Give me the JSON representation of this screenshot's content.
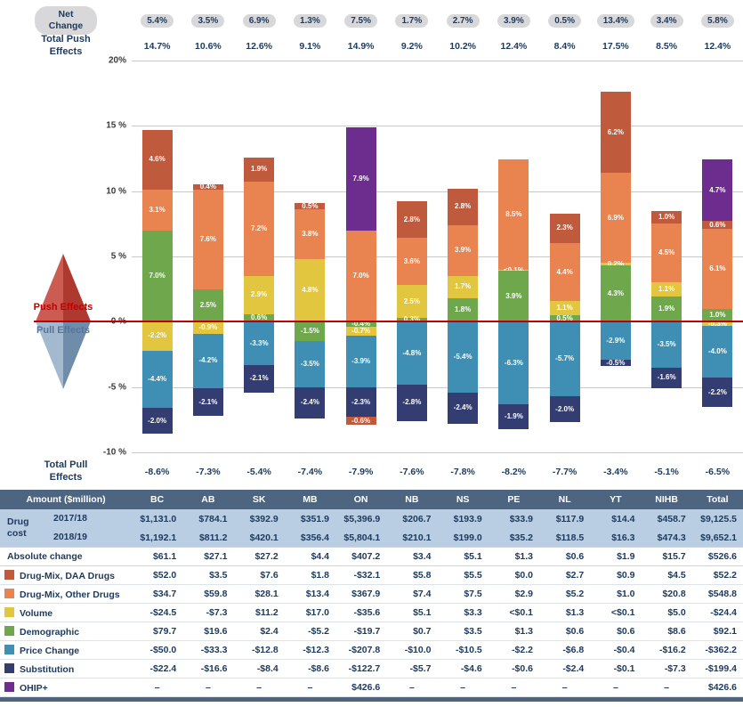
{
  "top": {
    "net_change_label": "Net Change",
    "net_change": [
      "5.4%",
      "3.5%",
      "6.9%",
      "1.3%",
      "7.5%",
      "1.7%",
      "2.7%",
      "3.9%",
      "0.5%",
      "13.4%",
      "3.4%",
      "5.8%"
    ],
    "total_push_label": "Total Push Effects",
    "total_push": [
      "14.7%",
      "10.6%",
      "12.6%",
      "9.1%",
      "14.9%",
      "9.2%",
      "10.2%",
      "12.4%",
      "8.4%",
      "17.5%",
      "8.5%",
      "12.4%"
    ],
    "total_pull_label": "Total Pull Effects",
    "total_pull": [
      "-8.6%",
      "-7.3%",
      "-5.4%",
      "-7.4%",
      "-7.9%",
      "-7.6%",
      "-7.8%",
      "-8.2%",
      "-7.7%",
      "-3.4%",
      "-5.1%",
      "-6.5%"
    ]
  },
  "decoration": {
    "push_text": "Push Effects",
    "pull_text": "Pull Effects",
    "line_color": "#C00000"
  },
  "chart_data": {
    "type": "bar",
    "stacked": true,
    "categories": [
      "BC",
      "AB",
      "SK",
      "MB",
      "ON",
      "NB",
      "NS",
      "PE",
      "NL",
      "YT",
      "NIHB",
      "Total"
    ],
    "ylim": [
      -10,
      20
    ],
    "grid": true,
    "yticks": [
      {
        "v": 20,
        "label": "20%"
      },
      {
        "v": 15,
        "label": "15 %"
      },
      {
        "v": 10,
        "label": "10 %"
      },
      {
        "v": 5,
        "label": "5 %"
      },
      {
        "v": 0,
        "label": "0 %"
      },
      {
        "v": -5,
        "label": "-5 %"
      },
      {
        "v": -10,
        "label": "-10 %"
      }
    ],
    "series_names": {
      "daa": "Drug-Mix, DAA Drugs",
      "other": "Drug-Mix, Other Drugs",
      "vol": "Volume",
      "demo": "Demographic",
      "price": "Price Change",
      "sub": "Substitution",
      "ohip": "OHIP+"
    },
    "series_colors": {
      "daa": "#C05A3C",
      "other": "#E9834F",
      "vol": "#E2C63F",
      "demo": "#6FA84C",
      "price": "#3E8FB3",
      "sub": "#333D72",
      "ohip": "#6D2D8F"
    },
    "bars": [
      {
        "category": "BC",
        "segments": [
          {
            "s": "daa",
            "v": 4.6,
            "label": "4.6%"
          },
          {
            "s": "other",
            "v": 3.1,
            "label": "3.1%"
          },
          {
            "s": "demo",
            "v": 7.0,
            "label": "7.0%"
          },
          {
            "s": "vol",
            "v": -2.2,
            "label": "-2.2%"
          },
          {
            "s": "price",
            "v": -4.4,
            "label": "-4.4%"
          },
          {
            "s": "sub",
            "v": -2.0,
            "label": "-2.0%"
          }
        ]
      },
      {
        "category": "AB",
        "segments": [
          {
            "s": "daa",
            "v": 0.4,
            "label": "0.4%"
          },
          {
            "s": "other",
            "v": 7.6,
            "label": "7.6%"
          },
          {
            "s": "demo",
            "v": 2.5,
            "label": "2.5%"
          },
          {
            "s": "vol",
            "v": -0.9,
            "label": "-0.9%"
          },
          {
            "s": "price",
            "v": -4.2,
            "label": "-4.2%"
          },
          {
            "s": "sub",
            "v": -2.1,
            "label": "-2.1%"
          }
        ]
      },
      {
        "category": "SK",
        "segments": [
          {
            "s": "daa",
            "v": 1.9,
            "label": "1.9%"
          },
          {
            "s": "other",
            "v": 7.2,
            "label": "7.2%"
          },
          {
            "s": "vol",
            "v": 2.9,
            "label": "2.9%"
          },
          {
            "s": "demo",
            "v": 0.6,
            "label": "0.6%"
          },
          {
            "s": "price",
            "v": -3.3,
            "label": "-3.3%"
          },
          {
            "s": "sub",
            "v": -2.1,
            "label": "-2.1%"
          }
        ]
      },
      {
        "category": "MB",
        "segments": [
          {
            "s": "daa",
            "v": 0.5,
            "label": "0.5%"
          },
          {
            "s": "other",
            "v": 3.8,
            "label": "3.8%"
          },
          {
            "s": "vol",
            "v": 4.8,
            "label": "4.8%"
          },
          {
            "s": "demo",
            "v": -1.5,
            "label": "-1.5%"
          },
          {
            "s": "price",
            "v": -3.5,
            "label": "-3.5%"
          },
          {
            "s": "sub",
            "v": -2.4,
            "label": "-2.4%"
          }
        ]
      },
      {
        "category": "ON",
        "segments": [
          {
            "s": "ohip",
            "v": 7.9,
            "label": "7.9%"
          },
          {
            "s": "other",
            "v": 7.0,
            "label": "7.0%"
          },
          {
            "s": "demo",
            "v": -0.4,
            "label": "-0.4%"
          },
          {
            "s": "vol",
            "v": -0.7,
            "label": "-0.7%"
          },
          {
            "s": "price",
            "v": -3.9,
            "label": "-3.9%"
          },
          {
            "s": "sub",
            "v": -2.3,
            "label": "-2.3%"
          },
          {
            "s": "daa",
            "v": -0.6,
            "label": "-0.6%"
          }
        ]
      },
      {
        "category": "NB",
        "segments": [
          {
            "s": "daa",
            "v": 2.8,
            "label": "2.8%"
          },
          {
            "s": "other",
            "v": 3.6,
            "label": "3.6%"
          },
          {
            "s": "vol",
            "v": 2.5,
            "label": "2.5%"
          },
          {
            "s": "demo",
            "v": 0.3,
            "label": "0.3%"
          },
          {
            "s": "price",
            "v": -4.8,
            "label": "-4.8%"
          },
          {
            "s": "sub",
            "v": -2.8,
            "label": "-2.8%"
          }
        ]
      },
      {
        "category": "NS",
        "segments": [
          {
            "s": "daa",
            "v": 2.8,
            "label": "2.8%"
          },
          {
            "s": "other",
            "v": 3.9,
            "label": "3.9%"
          },
          {
            "s": "vol",
            "v": 1.7,
            "label": "1.7%"
          },
          {
            "s": "demo",
            "v": 1.8,
            "label": "1.8%"
          },
          {
            "s": "price",
            "v": -5.4,
            "label": "-5.4%"
          },
          {
            "s": "sub",
            "v": -2.4,
            "label": "-2.4%"
          }
        ]
      },
      {
        "category": "PE",
        "segments": [
          {
            "s": "other",
            "v": 8.5,
            "label": "8.5%"
          },
          {
            "s": "vol",
            "v": 0.05,
            "label": "<0.1%"
          },
          {
            "s": "demo",
            "v": 3.9,
            "label": "3.9%"
          },
          {
            "s": "price",
            "v": -6.3,
            "label": "-6.3%"
          },
          {
            "s": "sub",
            "v": -1.9,
            "label": "-1.9%"
          }
        ]
      },
      {
        "category": "NL",
        "segments": [
          {
            "s": "daa",
            "v": 2.3,
            "label": "2.3%"
          },
          {
            "s": "other",
            "v": 4.4,
            "label": "4.4%"
          },
          {
            "s": "vol",
            "v": 1.1,
            "label": "1.1%"
          },
          {
            "s": "demo",
            "v": 0.5,
            "label": "0.5%"
          },
          {
            "s": "price",
            "v": -5.7,
            "label": "-5.7%"
          },
          {
            "s": "sub",
            "v": -2.0,
            "label": "-2.0%"
          }
        ]
      },
      {
        "category": "YT",
        "segments": [
          {
            "s": "daa",
            "v": 6.2,
            "label": "6.2%"
          },
          {
            "s": "other",
            "v": 6.9,
            "label": "6.9%"
          },
          {
            "s": "vol",
            "v": 0.2,
            "label": "0.2%"
          },
          {
            "s": "demo",
            "v": 4.3,
            "label": "4.3%"
          },
          {
            "s": "price",
            "v": -2.9,
            "label": "-2.9%"
          },
          {
            "s": "sub",
            "v": -0.5,
            "label": "-0.5%"
          }
        ]
      },
      {
        "category": "NIHB",
        "segments": [
          {
            "s": "daa",
            "v": 1.0,
            "label": "1.0%"
          },
          {
            "s": "other",
            "v": 4.5,
            "label": "4.5%"
          },
          {
            "s": "vol",
            "v": 1.1,
            "label": "1.1%"
          },
          {
            "s": "demo",
            "v": 1.9,
            "label": "1.9%"
          },
          {
            "s": "price",
            "v": -3.5,
            "label": "-3.5%"
          },
          {
            "s": "sub",
            "v": -1.6,
            "label": "-1.6%"
          }
        ]
      },
      {
        "category": "Total",
        "segments": [
          {
            "s": "ohip",
            "v": 4.7,
            "label": "4.7%"
          },
          {
            "s": "daa",
            "v": 0.6,
            "label": "0.6%"
          },
          {
            "s": "other",
            "v": 6.1,
            "label": "6.1%"
          },
          {
            "s": "demo",
            "v": 1.0,
            "label": "1.0%"
          },
          {
            "s": "vol",
            "v": -0.3,
            "label": "-0.3%"
          },
          {
            "s": "price",
            "v": -4.0,
            "label": "-4.0%"
          },
          {
            "s": "sub",
            "v": -2.2,
            "label": "-2.2%"
          }
        ]
      }
    ]
  },
  "table": {
    "header": [
      "Amount ($million)",
      "BC",
      "AB",
      "SK",
      "MB",
      "ON",
      "NB",
      "NS",
      "PE",
      "NL",
      "YT",
      "NIHB",
      "Total"
    ],
    "drug_cost_label": "Drug cost",
    "cost_rows": [
      {
        "year": "2017/18",
        "values": [
          "$1,131.0",
          "$784.1",
          "$392.9",
          "$351.9",
          "$5,396.9",
          "$206.7",
          "$193.9",
          "$33.9",
          "$117.9",
          "$14.4",
          "$458.7",
          "$9,125.5"
        ]
      },
      {
        "year": "2018/19",
        "values": [
          "$1,192.1",
          "$811.2",
          "$420.1",
          "$356.4",
          "$5,804.1",
          "$210.1",
          "$199.0",
          "$35.2",
          "$118.5",
          "$16.3",
          "$474.3",
          "$9,652.1"
        ]
      }
    ],
    "abs_change": {
      "label": "Absolute change",
      "values": [
        "$61.1",
        "$27.1",
        "$27.2",
        "$4.4",
        "$407.2",
        "$3.4",
        "$5.1",
        "$1.3",
        "$0.6",
        "$1.9",
        "$15.7",
        "$526.6"
      ]
    },
    "legend_rows": [
      {
        "key": "daa",
        "label": "Drug-Mix, DAA Drugs",
        "values": [
          "$52.0",
          "$3.5",
          "$7.6",
          "$1.8",
          "-$32.1",
          "$5.8",
          "$5.5",
          "$0.0",
          "$2.7",
          "$0.9",
          "$4.5",
          "$52.2"
        ]
      },
      {
        "key": "other",
        "label": "Drug-Mix, Other Drugs",
        "values": [
          "$34.7",
          "$59.8",
          "$28.1",
          "$13.4",
          "$367.9",
          "$7.4",
          "$7.5",
          "$2.9",
          "$5.2",
          "$1.0",
          "$20.8",
          "$548.8"
        ]
      },
      {
        "key": "vol",
        "label": "Volume",
        "values": [
          "-$24.5",
          "-$7.3",
          "$11.2",
          "$17.0",
          "-$35.6",
          "$5.1",
          "$3.3",
          "<$0.1",
          "$1.3",
          "<$0.1",
          "$5.0",
          "-$24.4"
        ]
      },
      {
        "key": "demo",
        "label": "Demographic",
        "values": [
          "$79.7",
          "$19.6",
          "$2.4",
          "-$5.2",
          "-$19.7",
          "$0.7",
          "$3.5",
          "$1.3",
          "$0.6",
          "$0.6",
          "$8.6",
          "$92.1"
        ]
      },
      {
        "key": "price",
        "label": "Price Change",
        "values": [
          "-$50.0",
          "-$33.3",
          "-$12.8",
          "-$12.3",
          "-$207.8",
          "-$10.0",
          "-$10.5",
          "-$2.2",
          "-$6.8",
          "-$0.4",
          "-$16.2",
          "-$362.2"
        ]
      },
      {
        "key": "sub",
        "label": "Substitution",
        "values": [
          "-$22.4",
          "-$16.6",
          "-$8.4",
          "-$8.6",
          "-$122.7",
          "-$5.7",
          "-$4.6",
          "-$0.6",
          "-$2.4",
          "-$0.1",
          "-$7.3",
          "-$199.4"
        ]
      },
      {
        "key": "ohip",
        "label": "OHIP+",
        "values": [
          "–",
          "–",
          "–",
          "–",
          "$426.6",
          "–",
          "–",
          "–",
          "–",
          "–",
          "–",
          "$426.6"
        ]
      }
    ]
  }
}
